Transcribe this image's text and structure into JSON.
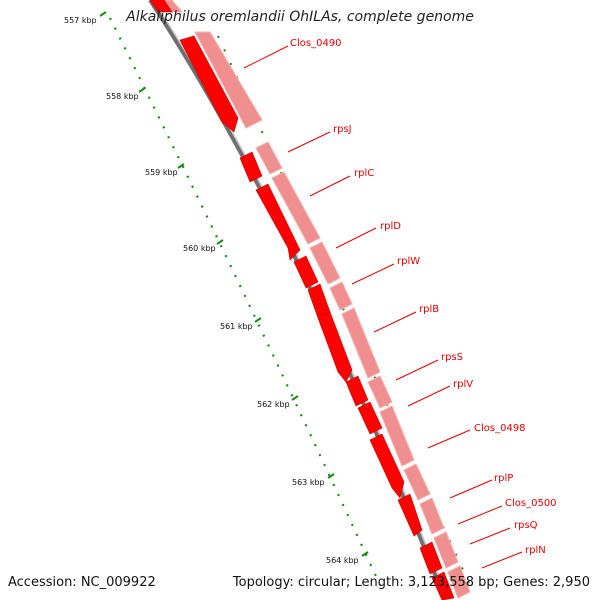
{
  "title": "Alkaliphilus oremlandii OhILAs, complete genome",
  "footer": {
    "accession": "Accession: NC_009922",
    "summary": "Topology: circular; Length: 3,123,558 bp; Genes: 2,950"
  },
  "ticks": [
    {
      "label": "557 kbp"
    },
    {
      "label": "558 kbp"
    },
    {
      "label": "559 kbp"
    },
    {
      "label": "560 kbp"
    },
    {
      "label": "561 kbp"
    },
    {
      "label": "562 kbp"
    },
    {
      "label": "563 kbp"
    },
    {
      "label": "564 kbp"
    }
  ],
  "genes": [
    {
      "name": "Clos_0490"
    },
    {
      "name": "rpsJ"
    },
    {
      "name": "rplC"
    },
    {
      "name": "rplD"
    },
    {
      "name": "rplW"
    },
    {
      "name": "rplB"
    },
    {
      "name": "rpsS"
    },
    {
      "name": "rplV"
    },
    {
      "name": "Clos_0498"
    },
    {
      "name": "rplP"
    },
    {
      "name": "Clos_0500"
    },
    {
      "name": "rpsQ"
    },
    {
      "name": "rplN"
    }
  ],
  "colors": {
    "cds": "#ff0000",
    "cds_light": "#f08a8a",
    "backbone": "#808080",
    "tick": "#1a8a1a",
    "label": "#e00000"
  }
}
